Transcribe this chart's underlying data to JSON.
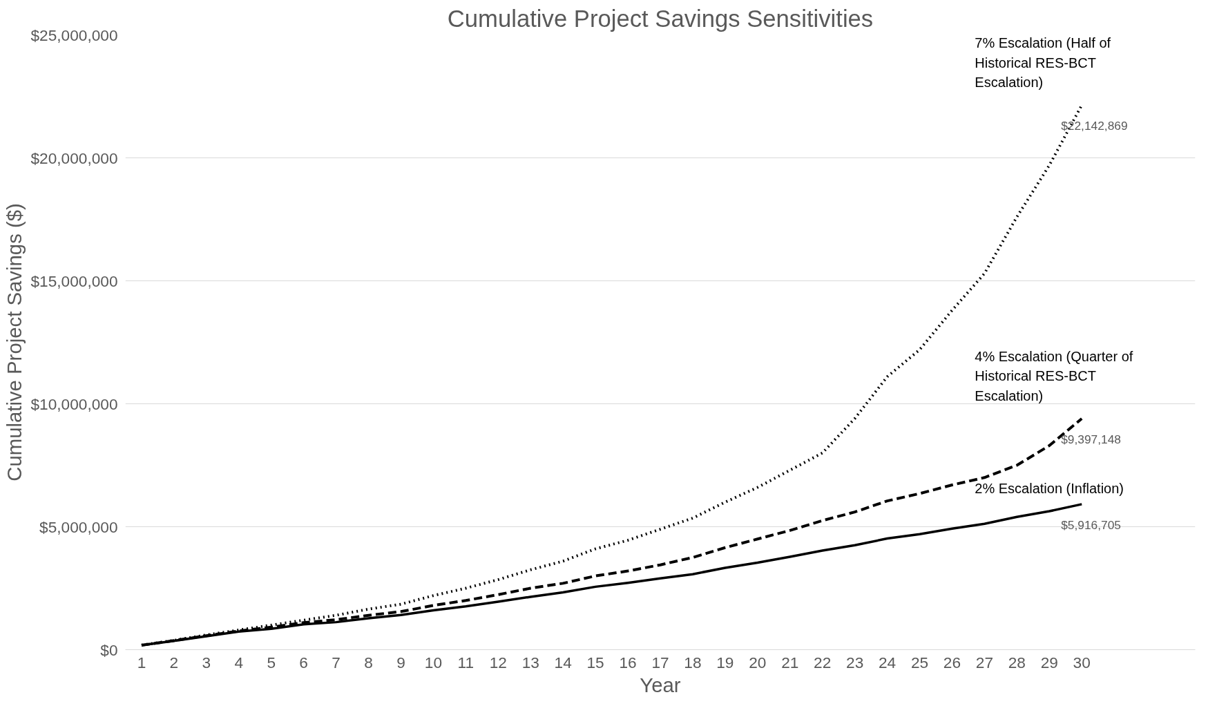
{
  "chart_data": {
    "type": "line",
    "title": "Cumulative Project Savings Sensitivities",
    "xlabel": "Year",
    "ylabel": "Cumulative Project Savings ($)",
    "x": [
      1,
      2,
      3,
      4,
      5,
      6,
      7,
      8,
      9,
      10,
      11,
      12,
      13,
      14,
      15,
      16,
      17,
      18,
      19,
      20,
      21,
      22,
      23,
      24,
      25,
      26,
      27,
      28,
      29,
      30
    ],
    "xlim": [
      0.5,
      33.5
    ],
    "xticks": [
      1,
      2,
      3,
      4,
      5,
      6,
      7,
      8,
      9,
      10,
      11,
      12,
      13,
      14,
      15,
      16,
      17,
      18,
      19,
      20,
      21,
      22,
      23,
      24,
      25,
      26,
      27,
      28,
      29,
      30
    ],
    "ylim": [
      0,
      25000000
    ],
    "yticks": [
      {
        "value": 0,
        "label": "$0"
      },
      {
        "value": 5000000,
        "label": "$5,000,000"
      },
      {
        "value": 10000000,
        "label": "$10,000,000"
      },
      {
        "value": 15000000,
        "label": "$15,000,000"
      },
      {
        "value": 20000000,
        "label": "$20,000,000"
      },
      {
        "value": 25000000,
        "label": "$25,000,000"
      }
    ],
    "grid": "y",
    "series": [
      {
        "name": "7% Escalation (Half of Historical RES-BCT Escalation)",
        "color": "#000000",
        "line_style": "dotted",
        "values": [
          190000,
          380000,
          600000,
          800000,
          1000000,
          1200000,
          1400000,
          1650000,
          1850000,
          2200000,
          2500000,
          2850000,
          3250000,
          3600000,
          4100000,
          4450000,
          4900000,
          5350000,
          6000000,
          6600000,
          7300000,
          8000000,
          9400000,
          11100000,
          12200000,
          13800000,
          15300000,
          17600000,
          19700000,
          22142869
        ],
        "value_labels": [
          null,
          null,
          null,
          null,
          null,
          null,
          null,
          null,
          null,
          null,
          null,
          null,
          null,
          null,
          null,
          null,
          null,
          null,
          null,
          null,
          null,
          null,
          null,
          null,
          null,
          null,
          null,
          null,
          null,
          "$22,142,869"
        ]
      },
      {
        "name": "4% Escalation (Quarter of Historical RES-BCT Escalation)",
        "color": "#000000",
        "line_style": "dashed",
        "values": [
          180000,
          370000,
          570000,
          760000,
          920000,
          1100000,
          1220000,
          1400000,
          1550000,
          1800000,
          2000000,
          2240000,
          2500000,
          2700000,
          3000000,
          3200000,
          3450000,
          3750000,
          4150000,
          4500000,
          4850000,
          5250000,
          5600000,
          6050000,
          6350000,
          6700000,
          7000000,
          7500000,
          8300000,
          9397148
        ],
        "value_labels": [
          null,
          null,
          null,
          null,
          null,
          null,
          null,
          null,
          null,
          null,
          null,
          null,
          null,
          null,
          null,
          null,
          null,
          null,
          null,
          null,
          null,
          null,
          null,
          null,
          null,
          null,
          null,
          null,
          null,
          "$9,397,148"
        ]
      },
      {
        "name": "2% Escalation (Inflation)",
        "color": "#000000",
        "line_style": "solid",
        "values": [
          180000,
          360000,
          550000,
          740000,
          850000,
          1030000,
          1120000,
          1280000,
          1410000,
          1600000,
          1760000,
          1950000,
          2150000,
          2330000,
          2560000,
          2720000,
          2900000,
          3070000,
          3330000,
          3540000,
          3780000,
          4030000,
          4250000,
          4520000,
          4700000,
          4920000,
          5120000,
          5400000,
          5630000,
          5916705
        ],
        "value_labels": [
          null,
          null,
          null,
          null,
          null,
          null,
          null,
          null,
          null,
          null,
          null,
          null,
          null,
          null,
          null,
          null,
          null,
          null,
          null,
          null,
          null,
          null,
          null,
          null,
          null,
          null,
          null,
          null,
          null,
          "$5,916,705"
        ]
      }
    ]
  }
}
